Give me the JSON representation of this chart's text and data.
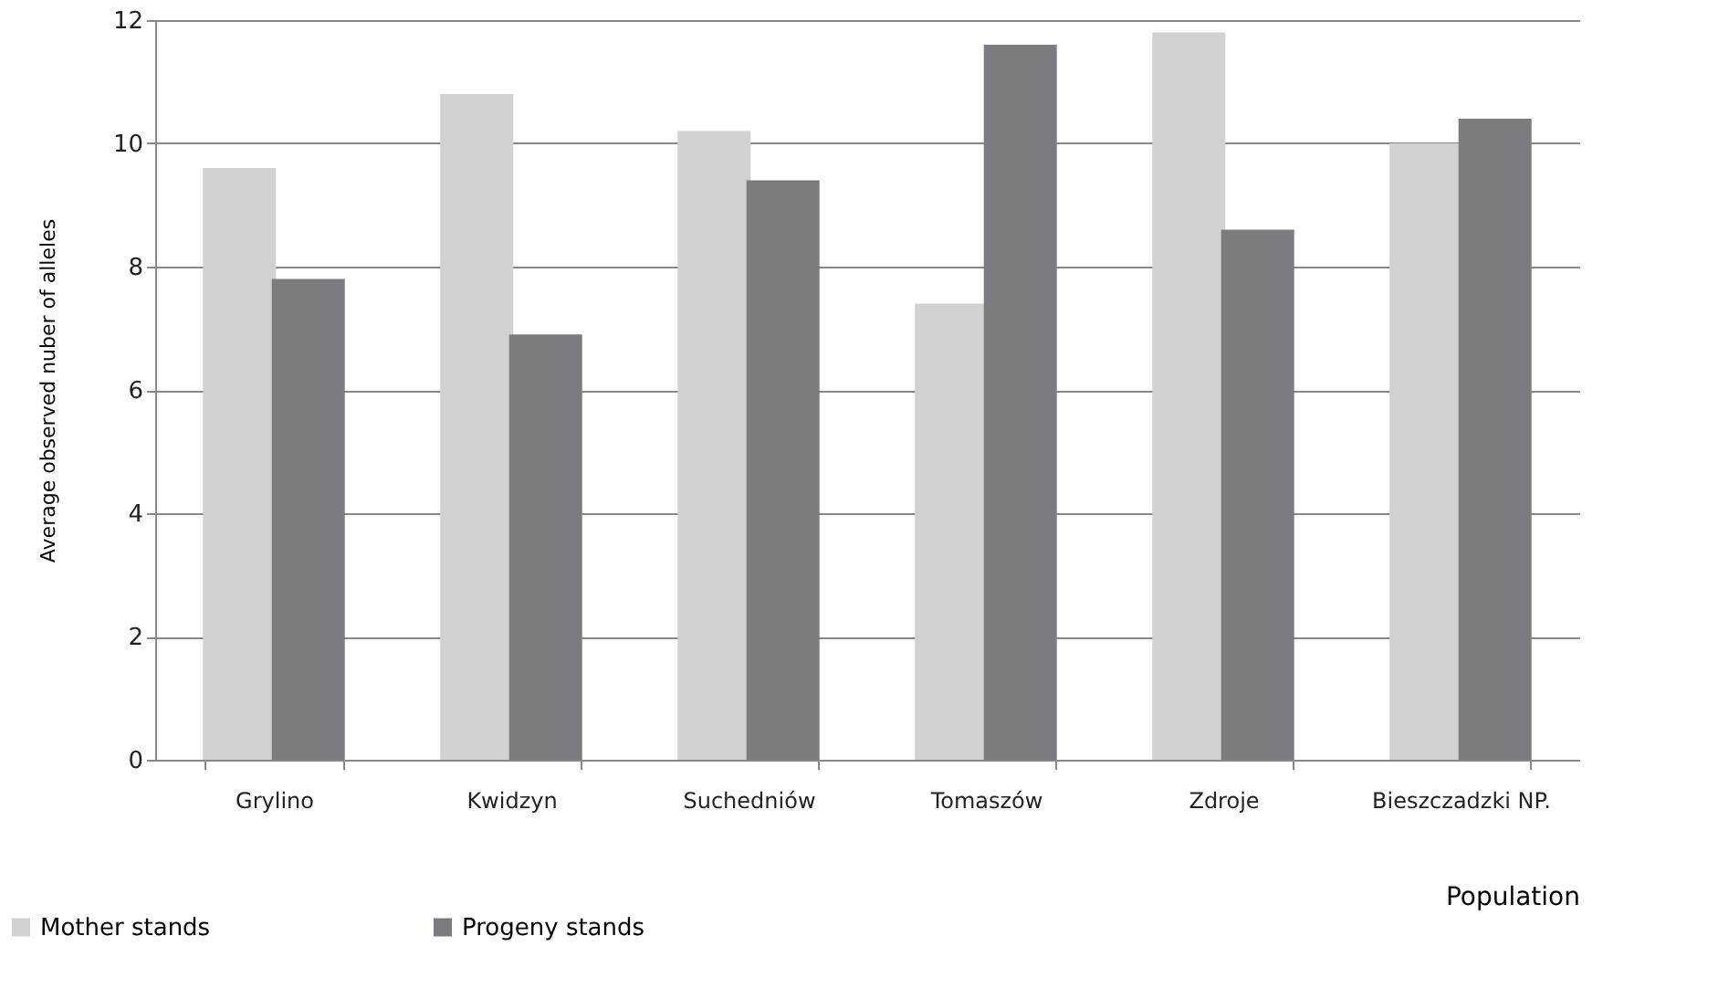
{
  "chart_data": {
    "type": "bar",
    "xlabel": "Population",
    "ylabel": "Average observed nuber of alleles",
    "categories": [
      "Grylino",
      "Kwidzyn",
      "Suchedniów",
      "Tomaszów",
      "Zdroje",
      "Bieszczadzki NP."
    ],
    "series": [
      {
        "name": "Mother stands",
        "color": "#d0d1d3",
        "values": [
          9.6,
          10.8,
          10.2,
          7.4,
          11.8,
          10.0
        ]
      },
      {
        "name": "Progeny stands",
        "color": "#7b7c80",
        "values": [
          7.8,
          6.9,
          9.4,
          11.6,
          8.6,
          10.4
        ]
      }
    ],
    "ylim": [
      0,
      12
    ],
    "yticks": [
      0,
      2,
      4,
      6,
      8,
      10,
      12
    ],
    "grid": "y",
    "legend": "bottom left"
  }
}
